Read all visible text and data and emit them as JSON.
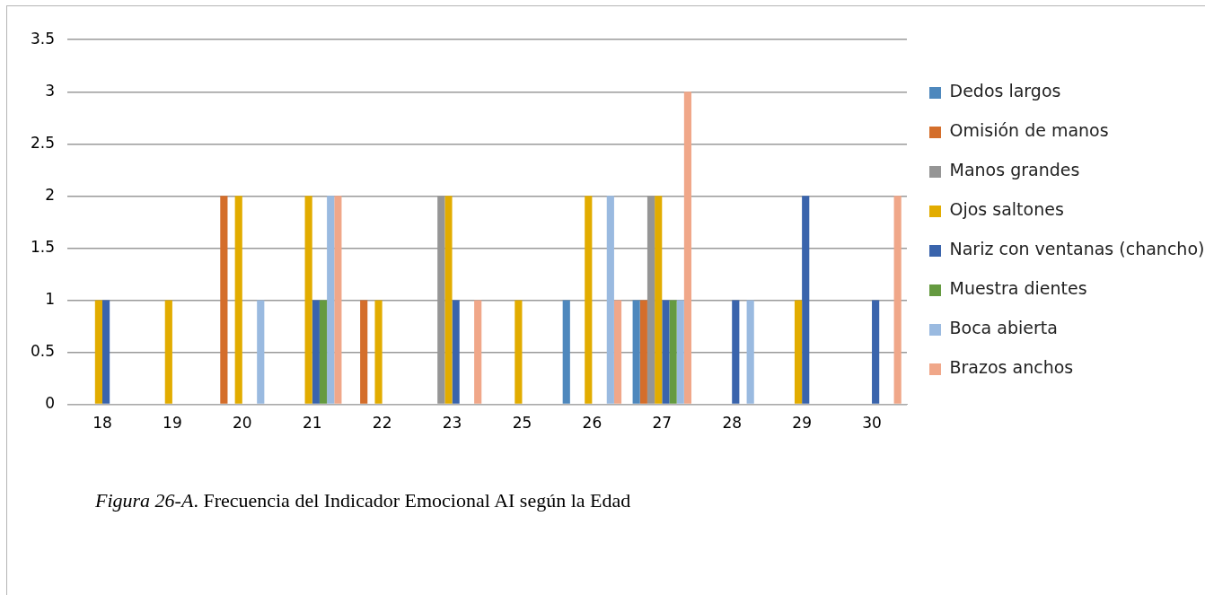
{
  "chart_data": {
    "type": "bar",
    "categories": [
      "18",
      "19",
      "20",
      "21",
      "22",
      "23",
      "25",
      "26",
      "27",
      "28",
      "29",
      "30"
    ],
    "series": [
      {
        "name": "Dedos largos",
        "color": "#4e88bd",
        "values": [
          0,
          0,
          0,
          0,
          0,
          0,
          0,
          1,
          1,
          0,
          0,
          0
        ]
      },
      {
        "name": "Omisión de manos",
        "color": "#d46e2b",
        "values": [
          0,
          0,
          2,
          0,
          1,
          0,
          0,
          0,
          1,
          0,
          0,
          0
        ]
      },
      {
        "name": "Manos grandes",
        "color": "#959595",
        "values": [
          0,
          0,
          0,
          0,
          0,
          2,
          0,
          0,
          2,
          0,
          0,
          0
        ]
      },
      {
        "name": "Ojos saltones",
        "color": "#e2ac00",
        "values": [
          1,
          1,
          2,
          2,
          1,
          2,
          1,
          2,
          2,
          0,
          1,
          0
        ]
      },
      {
        "name": "Nariz con ventanas (chancho)",
        "color": "#3a64ac",
        "values": [
          1,
          0,
          0,
          1,
          0,
          1,
          0,
          0,
          1,
          1,
          2,
          1
        ]
      },
      {
        "name": "Muestra dientes",
        "color": "#659a40",
        "values": [
          0,
          0,
          0,
          1,
          0,
          0,
          0,
          0,
          1,
          0,
          0,
          0
        ]
      },
      {
        "name": "Boca abierta",
        "color": "#9abae0",
        "values": [
          0,
          0,
          1,
          2,
          0,
          0,
          0,
          2,
          1,
          1,
          0,
          0
        ]
      },
      {
        "name": "Brazos anchos",
        "color": "#f0a789",
        "values": [
          0,
          0,
          0,
          2,
          0,
          1,
          0,
          1,
          3,
          0,
          0,
          2
        ]
      }
    ],
    "ylim": [
      0,
      3.5
    ],
    "yticks": [
      0,
      0.5,
      1,
      1.5,
      2,
      2.5,
      3,
      3.5
    ],
    "grid": "y",
    "legend": "right",
    "annotations": [
      "Figura 26-A. Frecuencia del Indicador Emocional AI según la Edad"
    ]
  }
}
